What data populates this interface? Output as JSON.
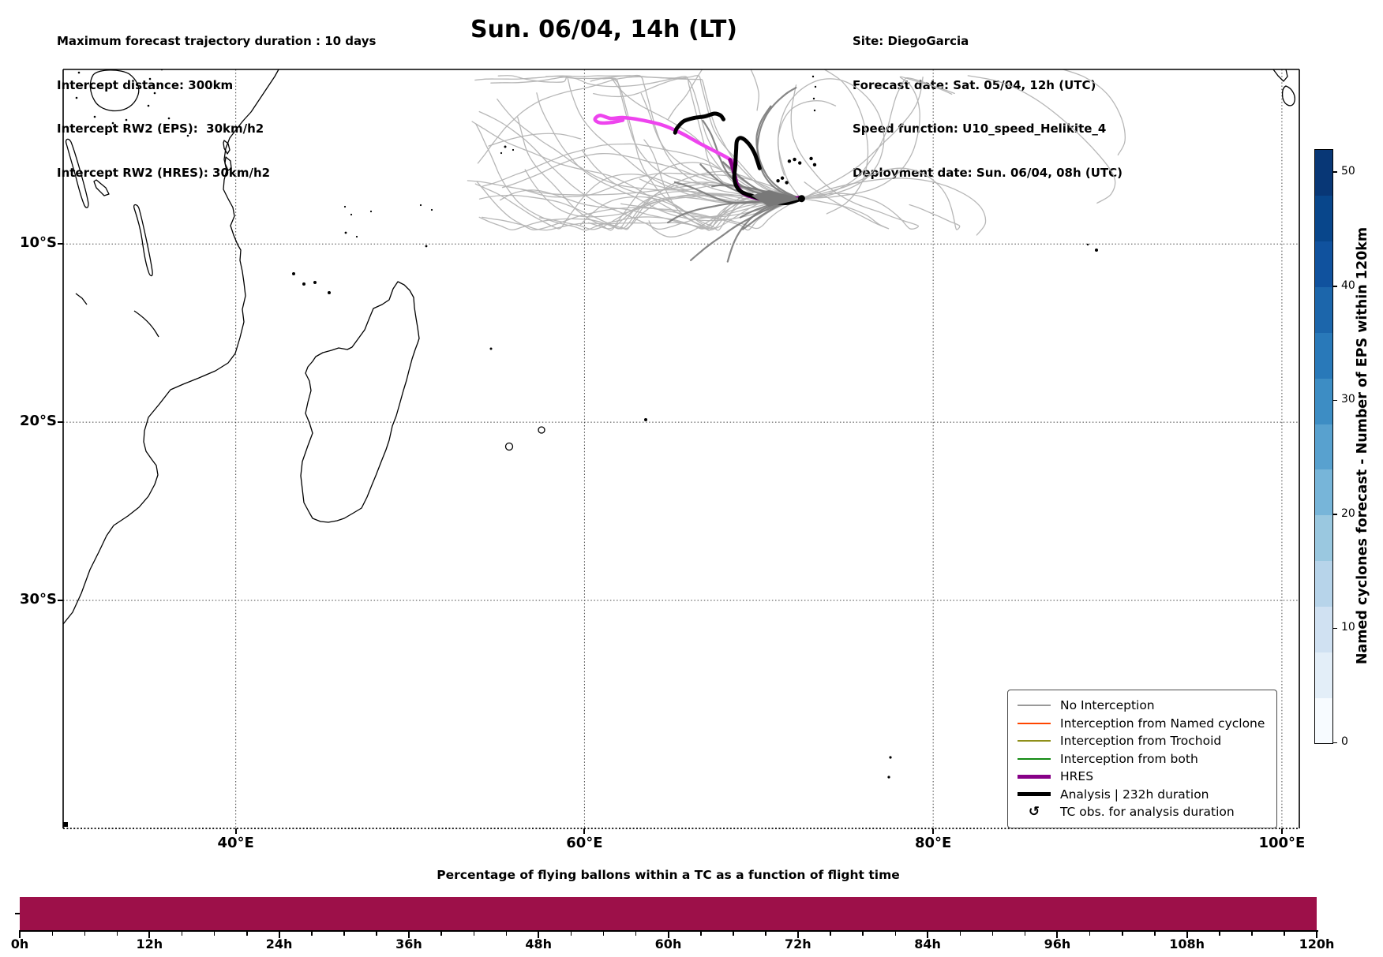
{
  "header": {
    "title": "Sun. 06/04, 14h (LT)",
    "info_left": [
      "Maximum forecast trajectory duration : 10 days",
      "Intercept distance: 300km",
      "Intercept RW2 (EPS):  30km/h2",
      "Intercept RW2 (HRES): 30km/h2"
    ],
    "info_right": [
      "Site: DiegoGarcia",
      "Forecast date: Sat. 05/04, 12h (UTC)",
      "Speed function: U10_speed_Helikite_4",
      "Deployment date: Sun. 06/04, 08h (UTC)"
    ]
  },
  "map": {
    "legend": {
      "items": [
        {
          "label": "No Interception",
          "color": "#999999",
          "lw": 2
        },
        {
          "label": "Interception from Named cyclone",
          "color": "#ff4500",
          "lw": 2
        },
        {
          "label": "Interception from Trochoid",
          "color": "#8f8f1a",
          "lw": 2
        },
        {
          "label": "Interception from both",
          "color": "#128a12",
          "lw": 2
        },
        {
          "label": "HRES",
          "color": "#870087",
          "lw": 5
        },
        {
          "label": "Analysis | 232h duration",
          "color": "#000000",
          "lw": 5
        },
        {
          "label": "TC obs. for analysis duration",
          "marker": "↺"
        }
      ]
    }
  },
  "colorbar": {
    "label": "Named cyclones forecast - Number of EPS within 120km",
    "vmin": 0,
    "vmax": 52,
    "ticks": [
      0,
      10,
      20,
      30,
      40,
      50
    ],
    "colors": [
      "#f7fbff",
      "#e3eef8",
      "#d0e1f2",
      "#b7d4ea",
      "#9ac8e0",
      "#77b5d9",
      "#58a1cf",
      "#3d8dc4",
      "#2979b9",
      "#1c66ab",
      "#10529e",
      "#08468b",
      "#083776"
    ]
  },
  "chart_data": [
    {
      "type": "trajectory-map",
      "title": "Sun. 06/04, 14h (LT)",
      "lon_range": [
        30.1,
        101.0
      ],
      "lat_range": [
        -42.8,
        -0.2
      ],
      "grid": true,
      "xticks": {
        "labels": [
          "40°E",
          "60°E",
          "80°E",
          "100°E"
        ],
        "lons": [
          40,
          60,
          80,
          100
        ]
      },
      "yticks": {
        "labels": [
          "10°S",
          "20°S",
          "30°S"
        ],
        "lats": [
          -10,
          -20,
          -30
        ]
      },
      "site": {
        "name": "DiegoGarcia",
        "lon": 72.45,
        "lat": -7.45
      },
      "ensemble": {
        "count": 42,
        "dark_core_count": 12,
        "color": "#b3b3b3",
        "dark_color": "#7a7a7a",
        "far_lines": [
          [
            [
              67.1,
              -6.57
            ],
            [
              63.6,
              -7.06
            ],
            [
              60.9,
              -7.23
            ],
            [
              58.15,
              -7.19
            ],
            [
              55.9,
              -6.84
            ],
            [
              54.2,
              -6.53
            ],
            [
              53.3,
              -6.44
            ]
          ],
          [
            [
              82.0,
              -0.55
            ],
            [
              83.85,
              -0.91
            ],
            [
              85.75,
              -1.79
            ],
            [
              87.65,
              -3.2
            ],
            [
              89.5,
              -5.0
            ],
            [
              90.4,
              -6.3
            ],
            [
              90.2,
              -7.2
            ],
            [
              89.4,
              -7.7
            ]
          ],
          [
            [
              73.7,
              -0.16
            ],
            [
              74.8,
              -0.9
            ],
            [
              75.6,
              -2.06
            ],
            [
              76.1,
              -3.5
            ],
            [
              76.25,
              -5.07
            ],
            [
              75.9,
              -6.57
            ],
            [
              75.0,
              -7.7
            ],
            [
              73.9,
              -8.3
            ]
          ],
          [
            [
              87.1,
              -0.1
            ],
            [
              88.7,
              -0.64
            ],
            [
              90.0,
              -1.6
            ],
            [
              90.8,
              -2.94
            ],
            [
              91.0,
              -4.2
            ],
            [
              90.6,
              -5.0
            ]
          ],
          [
            [
              69.0,
              -7.6
            ],
            [
              67.5,
              -8.5
            ],
            [
              66.1,
              -9.3
            ],
            [
              64.9,
              -9.6
            ],
            [
              64.0,
              -9.2
            ],
            [
              63.7,
              -8.7
            ]
          ],
          [
            [
              72.4,
              -7.45
            ],
            [
              74.1,
              -6.9
            ],
            [
              76.0,
              -6.5
            ],
            [
              78.0,
              -6.3
            ],
            [
              79.9,
              -6.5
            ],
            [
              81.6,
              -7.1
            ],
            [
              82.7,
              -7.9
            ],
            [
              83.0,
              -8.8
            ],
            [
              82.5,
              -9.5
            ]
          ],
          [
            [
              72.4,
              -7.45
            ],
            [
              71.7,
              -6.5
            ],
            [
              71.3,
              -5.4
            ],
            [
              71.1,
              -4.3
            ],
            [
              71.3,
              -3.3
            ],
            [
              71.8,
              -2.5
            ],
            [
              72.6,
              -2.06
            ],
            [
              73.6,
              -1.97
            ],
            [
              74.4,
              -2.24
            ]
          ],
          [
            [
              54.5,
              -4.5
            ],
            [
              55.8,
              -4.1
            ],
            [
              57.25,
              -3.83
            ],
            [
              58.6,
              -3.83
            ],
            [
              59.8,
              -4.1
            ]
          ],
          [
            [
              66.75,
              -0.2
            ],
            [
              66.3,
              -0.9
            ],
            [
              65.8,
              -1.7
            ],
            [
              65.2,
              -2.4
            ],
            [
              64.8,
              -3.0
            ]
          ],
          [
            [
              69.5,
              -0.1
            ],
            [
              69.8,
              -0.8
            ],
            [
              70.0,
              -1.6
            ],
            [
              69.9,
              -2.5
            ]
          ]
        ]
      },
      "series": [
        {
          "name": "Analysis | 232h duration",
          "color": "#000000",
          "width": 5,
          "points": [
            [
              72.45,
              -7.45
            ],
            [
              71.6,
              -7.7
            ],
            [
              70.6,
              -7.6
            ],
            [
              69.6,
              -7.3
            ],
            [
              68.9,
              -7.0
            ],
            [
              68.6,
              -6.4
            ],
            [
              68.65,
              -5.6
            ],
            [
              68.7,
              -4.7
            ],
            [
              68.75,
              -4.2
            ],
            [
              69.0,
              -4.05
            ],
            [
              69.4,
              -4.35
            ],
            [
              69.75,
              -4.9
            ],
            [
              70.05,
              -5.75
            ]
          ]
        },
        {
          "name": "TC observed track",
          "color": "#000000",
          "width": 5,
          "points": [
            [
              65.2,
              -3.75
            ],
            [
              65.3,
              -3.5
            ],
            [
              65.7,
              -3.1
            ],
            [
              66.3,
              -2.92
            ],
            [
              66.9,
              -2.84
            ],
            [
              67.45,
              -2.68
            ],
            [
              67.8,
              -2.78
            ],
            [
              67.97,
              -3.0
            ]
          ]
        },
        {
          "name": "HRES",
          "color": "#870087",
          "width": 5,
          "points": [
            [
              72.3,
              -7.4
            ],
            [
              71.3,
              -7.65
            ],
            [
              70.2,
              -7.5
            ],
            [
              69.2,
              -7.2
            ],
            [
              68.8,
              -6.8
            ],
            [
              68.6,
              -6.1
            ],
            [
              68.45,
              -5.55
            ],
            [
              68.35,
              -5.28
            ]
          ]
        },
        {
          "name": "magenta-track",
          "color": "#ee44ee",
          "width": 4.5,
          "points": [
            [
              68.7,
              -5.45
            ],
            [
              67.9,
              -5.0
            ],
            [
              66.7,
              -4.4
            ],
            [
              65.5,
              -3.75
            ],
            [
              64.4,
              -3.3
            ],
            [
              63.2,
              -3.03
            ],
            [
              62.2,
              -2.9
            ],
            [
              61.5,
              -2.95
            ],
            [
              60.9,
              -2.78
            ],
            [
              60.6,
              -3.0
            ],
            [
              60.9,
              -3.2
            ],
            [
              61.6,
              -3.17
            ],
            [
              62.2,
              -3.05
            ]
          ]
        }
      ],
      "tc_obs_markers": [
        [
          71.1,
          -6.45
        ],
        [
          71.35,
          -6.3
        ],
        [
          71.6,
          -6.55
        ],
        [
          71.75,
          -5.35
        ],
        [
          72.05,
          -5.25
        ],
        [
          72.35,
          -5.45
        ],
        [
          73.2,
          -5.55
        ],
        [
          73.0,
          -5.2
        ]
      ]
    },
    {
      "type": "bar",
      "title": "Percentage of flying ballons within a TC as a function of flight time",
      "x_unit": "h",
      "x_range": [
        0,
        120
      ],
      "x_major_ticks": [
        0,
        12,
        24,
        36,
        48,
        60,
        72,
        84,
        96,
        108,
        120
      ],
      "x_minor_step": 3,
      "ylim": [
        0,
        100
      ],
      "values": [
        {
          "x0": 0,
          "x1": 120,
          "value": 100
        }
      ],
      "bar_color": "#9d1049"
    }
  ]
}
